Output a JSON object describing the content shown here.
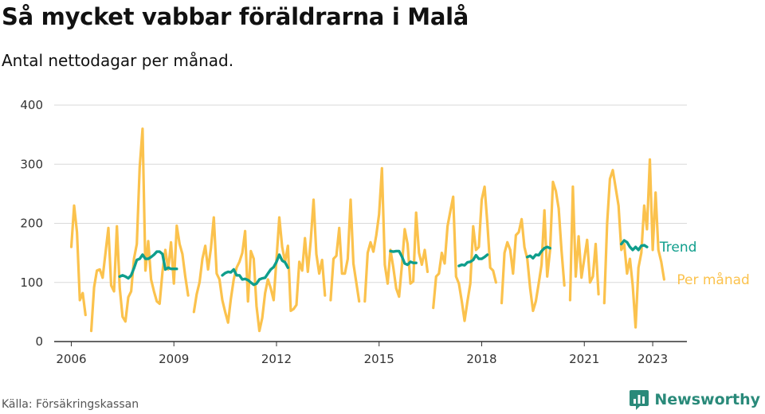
{
  "header": {
    "title": "Så mycket vabbar föräldrarna i Malå",
    "subtitle": "Antal nettodagar per månad."
  },
  "footer": {
    "source": "Källa: Försäkringskassan",
    "brand": "Newsworthy",
    "brand_icon": "bar-chart-icon"
  },
  "colors": {
    "monthly": "#fbc24d",
    "trend": "#0f9e8c",
    "grid": "#d9d9d9",
    "axis": "#333333"
  },
  "chart_data": {
    "type": "line",
    "y_ticks": [
      0,
      100,
      200,
      300,
      400
    ],
    "x_ticks": [
      "2006",
      "2009",
      "2012",
      "2015",
      "2018",
      "2021",
      "2023"
    ],
    "ylim": [
      0,
      400
    ],
    "xlim": [
      "2005-07",
      "2024-01"
    ],
    "grid": true,
    "series": [
      {
        "name": "Per månad",
        "values": [
          [
            "2006-01",
            160
          ],
          [
            "2006-02",
            230
          ],
          [
            "2006-03",
            185
          ],
          [
            "2006-04",
            70
          ],
          [
            "2006-05",
            82
          ],
          [
            "2006-06",
            45
          ],
          null,
          [
            "2006-08",
            18
          ],
          [
            "2006-09",
            92
          ],
          [
            "2006-10",
            120
          ],
          [
            "2006-11",
            122
          ],
          [
            "2006-12",
            108
          ],
          [
            "2007-01",
            150
          ],
          [
            "2007-02",
            192
          ],
          [
            "2007-03",
            95
          ],
          [
            "2007-04",
            85
          ],
          [
            "2007-05",
            195
          ],
          [
            "2007-06",
            90
          ],
          [
            "2007-07",
            42
          ],
          [
            "2007-08",
            34
          ],
          [
            "2007-09",
            75
          ],
          [
            "2007-10",
            85
          ],
          [
            "2007-11",
            140
          ],
          [
            "2007-12",
            165
          ],
          [
            "2008-01",
            295
          ],
          [
            "2008-02",
            360
          ],
          [
            "2008-03",
            120
          ],
          [
            "2008-04",
            170
          ],
          [
            "2008-05",
            105
          ],
          [
            "2008-06",
            85
          ],
          [
            "2008-07",
            68
          ],
          [
            "2008-08",
            64
          ],
          [
            "2008-09",
            118
          ],
          [
            "2008-10",
            155
          ],
          [
            "2008-11",
            122
          ],
          [
            "2008-12",
            168
          ],
          [
            "2009-01",
            98
          ],
          [
            "2009-02",
            196
          ],
          [
            "2009-03",
            165
          ],
          [
            "2009-04",
            148
          ],
          [
            "2009-05",
            110
          ],
          [
            "2009-06",
            78
          ],
          null,
          [
            "2009-08",
            50
          ],
          [
            "2009-09",
            80
          ],
          [
            "2009-10",
            100
          ],
          [
            "2009-11",
            140
          ],
          [
            "2009-12",
            162
          ],
          [
            "2010-01",
            122
          ],
          [
            "2010-02",
            158
          ],
          [
            "2010-03",
            210
          ],
          [
            "2010-04",
            115
          ],
          [
            "2010-05",
            105
          ],
          [
            "2010-06",
            70
          ],
          [
            "2010-07",
            50
          ],
          [
            "2010-08",
            32
          ],
          [
            "2010-09",
            72
          ],
          [
            "2010-10",
            105
          ],
          [
            "2010-11",
            125
          ],
          [
            "2010-12",
            135
          ],
          [
            "2011-01",
            150
          ],
          [
            "2011-02",
            187
          ],
          [
            "2011-03",
            68
          ],
          [
            "2011-04",
            153
          ],
          [
            "2011-05",
            140
          ],
          [
            "2011-06",
            60
          ],
          [
            "2011-07",
            18
          ],
          [
            "2011-08",
            40
          ],
          [
            "2011-09",
            82
          ],
          [
            "2011-10",
            105
          ],
          [
            "2011-11",
            90
          ],
          [
            "2011-12",
            70
          ],
          [
            "2012-01",
            140
          ],
          [
            "2012-02",
            210
          ],
          [
            "2012-03",
            160
          ],
          [
            "2012-04",
            135
          ],
          [
            "2012-05",
            162
          ],
          [
            "2012-06",
            52
          ],
          [
            "2012-07",
            55
          ],
          [
            "2012-08",
            62
          ],
          [
            "2012-09",
            135
          ],
          [
            "2012-10",
            120
          ],
          [
            "2012-11",
            175
          ],
          [
            "2012-12",
            118
          ],
          [
            "2013-01",
            170
          ],
          [
            "2013-02",
            240
          ],
          [
            "2013-03",
            148
          ],
          [
            "2013-04",
            115
          ],
          [
            "2013-05",
            138
          ],
          [
            "2013-06",
            78
          ],
          null,
          [
            "2013-08",
            70
          ],
          [
            "2013-09",
            140
          ],
          [
            "2013-10",
            145
          ],
          [
            "2013-11",
            192
          ],
          [
            "2013-12",
            115
          ],
          [
            "2014-01",
            115
          ],
          [
            "2014-02",
            140
          ],
          [
            "2014-03",
            240
          ],
          [
            "2014-04",
            132
          ],
          [
            "2014-05",
            100
          ],
          [
            "2014-06",
            68
          ],
          null,
          [
            "2014-08",
            68
          ],
          [
            "2014-09",
            150
          ],
          [
            "2014-10",
            168
          ],
          [
            "2014-11",
            152
          ],
          [
            "2014-12",
            180
          ],
          [
            "2015-01",
            215
          ],
          [
            "2015-02",
            293
          ],
          [
            "2015-03",
            130
          ],
          [
            "2015-04",
            98
          ],
          [
            "2015-05",
            155
          ],
          [
            "2015-06",
            125
          ],
          [
            "2015-07",
            90
          ],
          [
            "2015-08",
            76
          ],
          [
            "2015-09",
            128
          ],
          [
            "2015-10",
            190
          ],
          [
            "2015-11",
            165
          ],
          [
            "2015-12",
            98
          ],
          [
            "2016-01",
            102
          ],
          [
            "2016-02",
            218
          ],
          [
            "2016-03",
            150
          ],
          [
            "2016-04",
            130
          ],
          [
            "2016-05",
            155
          ],
          [
            "2016-06",
            118
          ],
          null,
          [
            "2016-08",
            57
          ],
          [
            "2016-09",
            110
          ],
          [
            "2016-10",
            115
          ],
          [
            "2016-11",
            150
          ],
          [
            "2016-12",
            132
          ],
          [
            "2017-01",
            195
          ],
          [
            "2017-02",
            220
          ],
          [
            "2017-03",
            245
          ],
          [
            "2017-04",
            110
          ],
          [
            "2017-05",
            98
          ],
          [
            "2017-06",
            68
          ],
          [
            "2017-07",
            35
          ],
          [
            "2017-08",
            68
          ],
          [
            "2017-09",
            98
          ],
          [
            "2017-10",
            195
          ],
          [
            "2017-11",
            155
          ],
          [
            "2017-12",
            160
          ],
          [
            "2018-01",
            240
          ],
          [
            "2018-02",
            262
          ],
          [
            "2018-03",
            200
          ],
          [
            "2018-04",
            125
          ],
          [
            "2018-05",
            120
          ],
          [
            "2018-06",
            100
          ],
          null,
          [
            "2018-08",
            65
          ],
          [
            "2018-09",
            150
          ],
          [
            "2018-10",
            168
          ],
          [
            "2018-11",
            155
          ],
          [
            "2018-12",
            115
          ],
          [
            "2019-01",
            180
          ],
          [
            "2019-02",
            185
          ],
          [
            "2019-03",
            207
          ],
          [
            "2019-04",
            160
          ],
          [
            "2019-05",
            140
          ],
          [
            "2019-06",
            90
          ],
          [
            "2019-07",
            52
          ],
          [
            "2019-08",
            68
          ],
          [
            "2019-09",
            98
          ],
          [
            "2019-10",
            130
          ],
          [
            "2019-11",
            222
          ],
          [
            "2019-12",
            110
          ],
          [
            "2020-01",
            155
          ],
          [
            "2020-02",
            270
          ],
          [
            "2020-03",
            255
          ],
          [
            "2020-04",
            225
          ],
          [
            "2020-05",
            155
          ],
          [
            "2020-06",
            95
          ],
          null,
          [
            "2020-08",
            70
          ],
          [
            "2020-09",
            262
          ],
          [
            "2020-10",
            110
          ],
          [
            "2020-11",
            178
          ],
          [
            "2020-12",
            108
          ],
          [
            "2021-01",
            140
          ],
          [
            "2021-02",
            172
          ],
          [
            "2021-03",
            100
          ],
          [
            "2021-04",
            110
          ],
          [
            "2021-05",
            165
          ],
          [
            "2021-06",
            80
          ],
          null,
          [
            "2021-08",
            65
          ],
          [
            "2021-09",
            200
          ],
          [
            "2021-10",
            275
          ],
          [
            "2021-11",
            290
          ],
          [
            "2021-12",
            260
          ],
          [
            "2022-01",
            230
          ],
          [
            "2022-02",
            155
          ],
          [
            "2022-03",
            165
          ],
          [
            "2022-04",
            115
          ],
          [
            "2022-05",
            140
          ],
          [
            "2022-06",
            95
          ],
          [
            "2022-07",
            24
          ],
          [
            "2022-08",
            125
          ],
          [
            "2022-09",
            150
          ],
          [
            "2022-10",
            230
          ],
          [
            "2022-11",
            190
          ],
          [
            "2022-12",
            308
          ],
          [
            "2023-01",
            155
          ],
          [
            "2023-02",
            252
          ],
          [
            "2023-03",
            155
          ],
          [
            "2023-04",
            135
          ],
          [
            "2023-05",
            105
          ]
        ]
      },
      {
        "name": "Trend",
        "values": [
          [
            "2007-06",
            110
          ],
          [
            "2007-07",
            112
          ],
          [
            "2007-08",
            110
          ],
          [
            "2007-09",
            107
          ],
          [
            "2007-10",
            112
          ],
          [
            "2007-11",
            124
          ],
          [
            "2007-12",
            138
          ],
          [
            "2008-01",
            140
          ],
          [
            "2008-02",
            147
          ],
          [
            "2008-03",
            140
          ],
          [
            "2008-04",
            140
          ],
          [
            "2008-05",
            143
          ],
          [
            "2008-06",
            147
          ],
          [
            "2008-07",
            152
          ],
          [
            "2008-08",
            152
          ],
          [
            "2008-09",
            148
          ],
          [
            "2008-10",
            122
          ],
          [
            "2008-11",
            125
          ],
          [
            "2008-12",
            123
          ],
          [
            "2009-01",
            123
          ],
          [
            "2009-02",
            123
          ],
          null,
          [
            "2010-06",
            112
          ],
          [
            "2010-07",
            116
          ],
          [
            "2010-08",
            118
          ],
          [
            "2010-09",
            117
          ],
          [
            "2010-10",
            122
          ],
          [
            "2010-11",
            112
          ],
          [
            "2010-12",
            112
          ],
          [
            "2011-01",
            105
          ],
          [
            "2011-02",
            106
          ],
          [
            "2011-03",
            104
          ],
          [
            "2011-04",
            100
          ],
          [
            "2011-05",
            96
          ],
          [
            "2011-06",
            98
          ],
          [
            "2011-07",
            105
          ],
          [
            "2011-08",
            107
          ],
          [
            "2011-09",
            108
          ],
          [
            "2011-10",
            115
          ],
          [
            "2011-11",
            122
          ],
          [
            "2011-12",
            126
          ],
          [
            "2012-01",
            135
          ],
          [
            "2012-02",
            147
          ],
          [
            "2012-03",
            137
          ],
          [
            "2012-04",
            134
          ],
          [
            "2012-05",
            125
          ],
          null,
          [
            "2015-05",
            153
          ],
          [
            "2015-06",
            152
          ],
          [
            "2015-07",
            153
          ],
          [
            "2015-08",
            153
          ],
          [
            "2015-09",
            144
          ],
          [
            "2015-10",
            132
          ],
          [
            "2015-11",
            130
          ],
          [
            "2015-12",
            135
          ],
          [
            "2016-01",
            133
          ],
          [
            "2016-02",
            133
          ],
          null,
          [
            "2017-05",
            128
          ],
          [
            "2017-06",
            130
          ],
          [
            "2017-07",
            129
          ],
          [
            "2017-08",
            134
          ],
          [
            "2017-09",
            135
          ],
          [
            "2017-10",
            138
          ],
          [
            "2017-11",
            146
          ],
          [
            "2017-12",
            140
          ],
          [
            "2018-01",
            140
          ],
          [
            "2018-02",
            143
          ],
          [
            "2018-03",
            147
          ],
          null,
          [
            "2019-05",
            143
          ],
          [
            "2019-06",
            145
          ],
          [
            "2019-07",
            141
          ],
          [
            "2019-08",
            147
          ],
          [
            "2019-09",
            146
          ],
          [
            "2019-10",
            153
          ],
          [
            "2019-11",
            158
          ],
          [
            "2019-12",
            160
          ],
          [
            "2020-01",
            158
          ],
          null,
          [
            "2022-02",
            165
          ],
          [
            "2022-03",
            171
          ],
          [
            "2022-04",
            168
          ],
          [
            "2022-05",
            160
          ],
          [
            "2022-06",
            155
          ],
          [
            "2022-07",
            160
          ],
          [
            "2022-08",
            155
          ],
          [
            "2022-09",
            162
          ],
          [
            "2022-10",
            163
          ],
          [
            "2022-11",
            160
          ]
        ]
      }
    ]
  }
}
